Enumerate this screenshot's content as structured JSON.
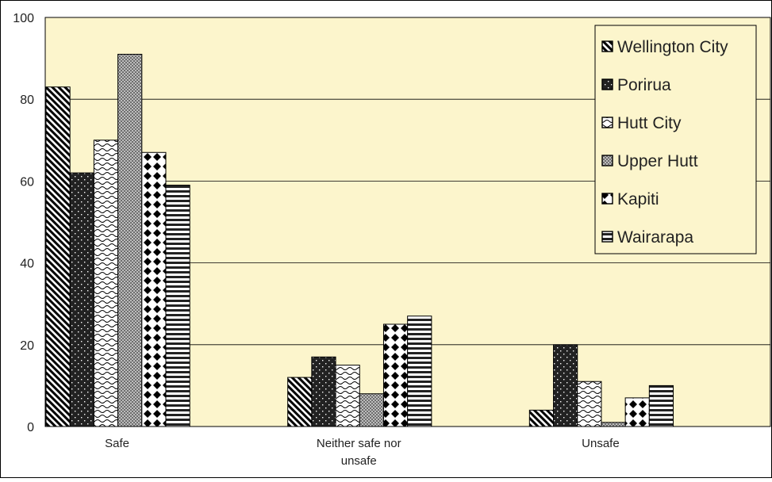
{
  "chart_data": {
    "type": "bar",
    "title": "",
    "xlabel": "",
    "ylabel": "",
    "categories": [
      "Safe",
      "Neither safe nor unsafe",
      "Unsafe"
    ],
    "category_label_lines": [
      [
        "Safe"
      ],
      [
        "Neither safe nor",
        "unsafe"
      ],
      [
        "Unsafe"
      ]
    ],
    "ylim": [
      0,
      100
    ],
    "yticks": [
      0,
      20,
      40,
      60,
      80,
      100
    ],
    "grid": true,
    "legend_position": "top-right",
    "series": [
      {
        "name": "Wellington City",
        "values": [
          83,
          12,
          4
        ],
        "pattern": "diagonal-stripes"
      },
      {
        "name": "Porirua",
        "values": [
          62,
          17,
          20
        ],
        "pattern": "dark-dots"
      },
      {
        "name": "Hutt City",
        "values": [
          70,
          15,
          11
        ],
        "pattern": "wave"
      },
      {
        "name": "Upper Hutt",
        "values": [
          91,
          8,
          1
        ],
        "pattern": "fine-grid"
      },
      {
        "name": "Kapiti",
        "values": [
          67,
          25,
          7
        ],
        "pattern": "diamonds"
      },
      {
        "name": "Wairarapa",
        "values": [
          59,
          27,
          10
        ],
        "pattern": "horizontal-stripes"
      }
    ]
  },
  "colors": {
    "plot_background": "#fcf5cc",
    "bar_stroke": "#000000",
    "gridline": "#000000",
    "frame": "#000000",
    "text": "#222222"
  }
}
